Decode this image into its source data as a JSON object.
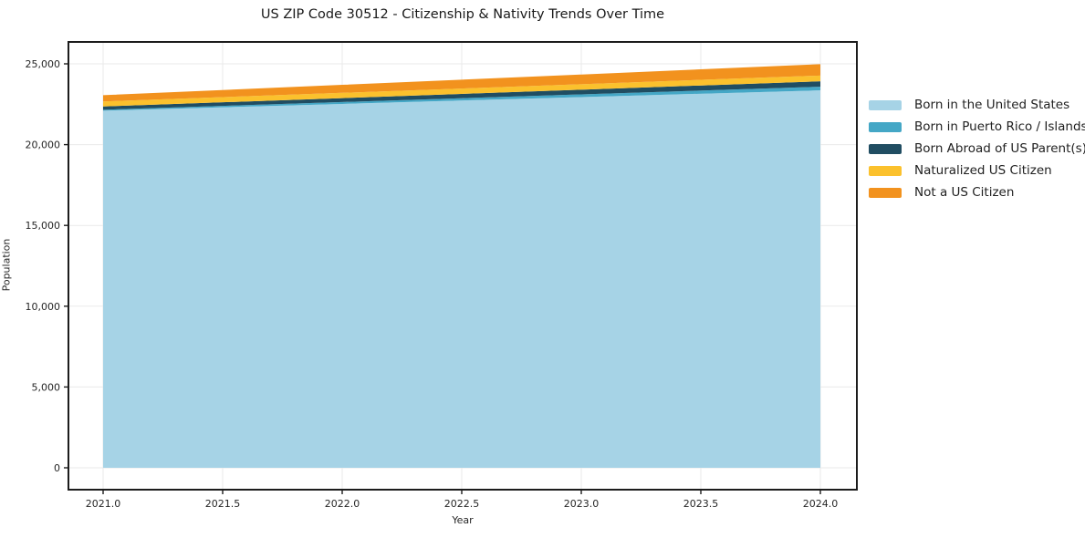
{
  "chart_data": {
    "type": "area",
    "stacked": true,
    "title": "US ZIP Code 30512 - Citizenship & Nativity Trends Over Time",
    "xlabel": "Year",
    "ylabel": "Population",
    "x": [
      2021,
      2022,
      2023,
      2024
    ],
    "series": [
      {
        "name": "Born in the United States",
        "color": "#a6d3e6",
        "values": [
          22100,
          22520,
          22940,
          23360
        ]
      },
      {
        "name": "Born in Puerto Rico / Islands",
        "color": "#44a7c6",
        "values": [
          60,
          115,
          170,
          225
        ]
      },
      {
        "name": "Born Abroad of US Parent(s)",
        "color": "#204d62",
        "values": [
          200,
          245,
          290,
          335
        ]
      },
      {
        "name": "Naturalized US Citizen",
        "color": "#fbc12d",
        "values": [
          310,
          325,
          340,
          355
        ]
      },
      {
        "name": "Not a US Citizen",
        "color": "#f2921e",
        "values": [
          390,
          495,
          600,
          705
        ]
      }
    ],
    "totals_by_year": [
      23060,
      23700,
      24340,
      24980
    ],
    "xticks": {
      "values": [
        2021.0,
        2021.5,
        2022.0,
        2022.5,
        2023.0,
        2023.5,
        2024.0
      ],
      "labels": [
        "2021.0",
        "2021.5",
        "2022.0",
        "2022.5",
        "2023.0",
        "2023.5",
        "2024.0"
      ]
    },
    "yticks": {
      "values": [
        0,
        5000,
        10000,
        15000,
        20000,
        25000
      ],
      "labels": [
        "0",
        "5,000",
        "10,000",
        "15,000",
        "20,000",
        "25,000"
      ]
    },
    "xlim": [
      2020.85,
      2024.15
    ],
    "ylim": [
      -1350,
      26350
    ],
    "grid": true,
    "legend_position": "right",
    "colors": {
      "grid": "#eaeaea",
      "frame": "#1c1c1c",
      "tick": "#1c1c1c",
      "background": "#ffffff"
    }
  }
}
